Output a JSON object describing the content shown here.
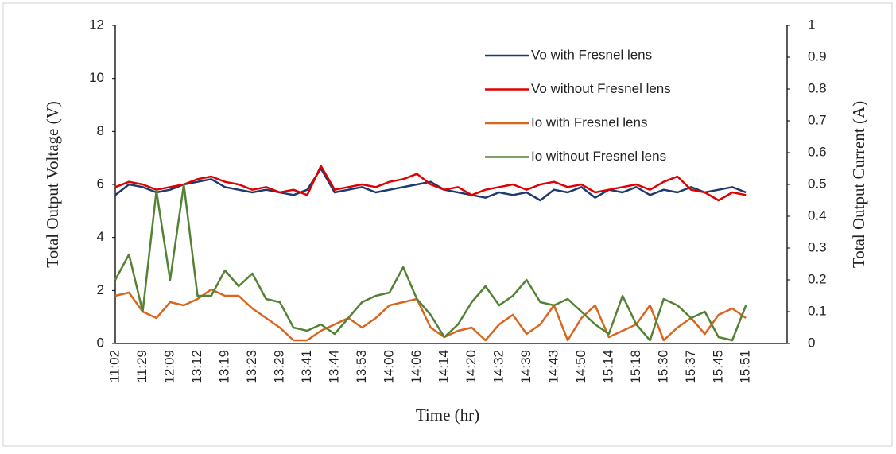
{
  "chart_data": {
    "type": "line",
    "xlabel": "Time (hr)",
    "ylabel": "Total Output Voltage (V)",
    "y2label": "Total Output Current (A)",
    "categories": [
      "11:02",
      null,
      "11:29",
      null,
      "12:09",
      null,
      "13:12",
      null,
      "13:19",
      null,
      "13:23",
      null,
      "13:29",
      null,
      "13:41",
      null,
      "13:44",
      null,
      "13:53",
      null,
      "14:00",
      null,
      "14:06",
      null,
      "14:14",
      null,
      "14:20",
      null,
      "14:32",
      null,
      "14:39",
      null,
      "14:43",
      null,
      "14:50",
      null,
      "15:14",
      null,
      "15:18",
      null,
      "15:30",
      null,
      "15:37",
      null,
      "15:45",
      null,
      "15:51"
    ],
    "series": [
      {
        "name": "Vo with Fresnel lens",
        "color": "#1f3a6e",
        "values": [
          5.6,
          6.0,
          5.9,
          5.7,
          5.8,
          6.0,
          6.1,
          6.2,
          5.9,
          5.8,
          5.7,
          5.8,
          5.7,
          5.6,
          5.8,
          6.6,
          5.7,
          5.8,
          5.9,
          5.7,
          5.8,
          5.9,
          6.0,
          6.1,
          5.8,
          5.7,
          5.6,
          5.5,
          5.7,
          5.6,
          5.7,
          5.4,
          5.8,
          5.7,
          5.9,
          5.5,
          5.8,
          5.7,
          5.9,
          5.6,
          5.8,
          5.7,
          5.9,
          5.7,
          5.8,
          5.9,
          5.7
        ]
      },
      {
        "name": "Vo without Fresnel lens",
        "color": "#e00000",
        "values": [
          5.9,
          6.1,
          6.0,
          5.8,
          5.9,
          6.0,
          6.2,
          6.3,
          6.1,
          6.0,
          5.8,
          5.9,
          5.7,
          5.8,
          5.6,
          6.7,
          5.8,
          5.9,
          6.0,
          5.9,
          6.1,
          6.2,
          6.4,
          6.0,
          5.8,
          5.9,
          5.6,
          5.8,
          5.9,
          6.0,
          5.8,
          6.0,
          6.1,
          5.9,
          6.0,
          5.7,
          5.8,
          5.9,
          6.0,
          5.8,
          6.1,
          6.3,
          5.8,
          5.7,
          5.4,
          5.7,
          5.6
        ]
      },
      {
        "name": "Io with Fresnel lens",
        "color": "#d9661f",
        "axis": "y2",
        "values": [
          0.15,
          0.16,
          0.1,
          0.08,
          0.13,
          0.12,
          0.14,
          0.17,
          0.15,
          0.15,
          0.11,
          0.08,
          0.05,
          0.01,
          0.01,
          0.04,
          0.06,
          0.08,
          0.05,
          0.08,
          0.12,
          0.13,
          0.14,
          0.05,
          0.02,
          0.04,
          0.05,
          0.01,
          0.06,
          0.09,
          0.03,
          0.06,
          0.12,
          0.01,
          0.08,
          0.12,
          0.02,
          0.04,
          0.06,
          0.12,
          0.01,
          0.05,
          0.08,
          0.03,
          0.09,
          0.11,
          0.08
        ]
      },
      {
        "name": "Io without Fresnel lens",
        "color": "#548235",
        "axis": "y2",
        "values": [
          0.2,
          0.28,
          0.1,
          0.48,
          0.2,
          0.5,
          0.15,
          0.15,
          0.23,
          0.18,
          0.22,
          0.14,
          0.13,
          0.05,
          0.04,
          0.06,
          0.03,
          0.08,
          0.13,
          0.15,
          0.16,
          0.24,
          0.14,
          0.09,
          0.02,
          0.06,
          0.13,
          0.18,
          0.12,
          0.15,
          0.2,
          0.13,
          0.12,
          0.14,
          0.1,
          0.06,
          0.03,
          0.15,
          0.06,
          0.01,
          0.14,
          0.12,
          0.08,
          0.1,
          0.02,
          0.01,
          0.12
        ]
      }
    ],
    "ylim": [
      0,
      12
    ],
    "yticks": [
      0,
      2,
      4,
      6,
      8,
      10,
      12
    ],
    "y2lim": [
      0,
      1
    ],
    "y2ticks": [
      0,
      0.1,
      0.2,
      0.3,
      0.4,
      0.5,
      0.6,
      0.7,
      0.8,
      0.9,
      1
    ],
    "grid": false,
    "legend": "upper right"
  }
}
